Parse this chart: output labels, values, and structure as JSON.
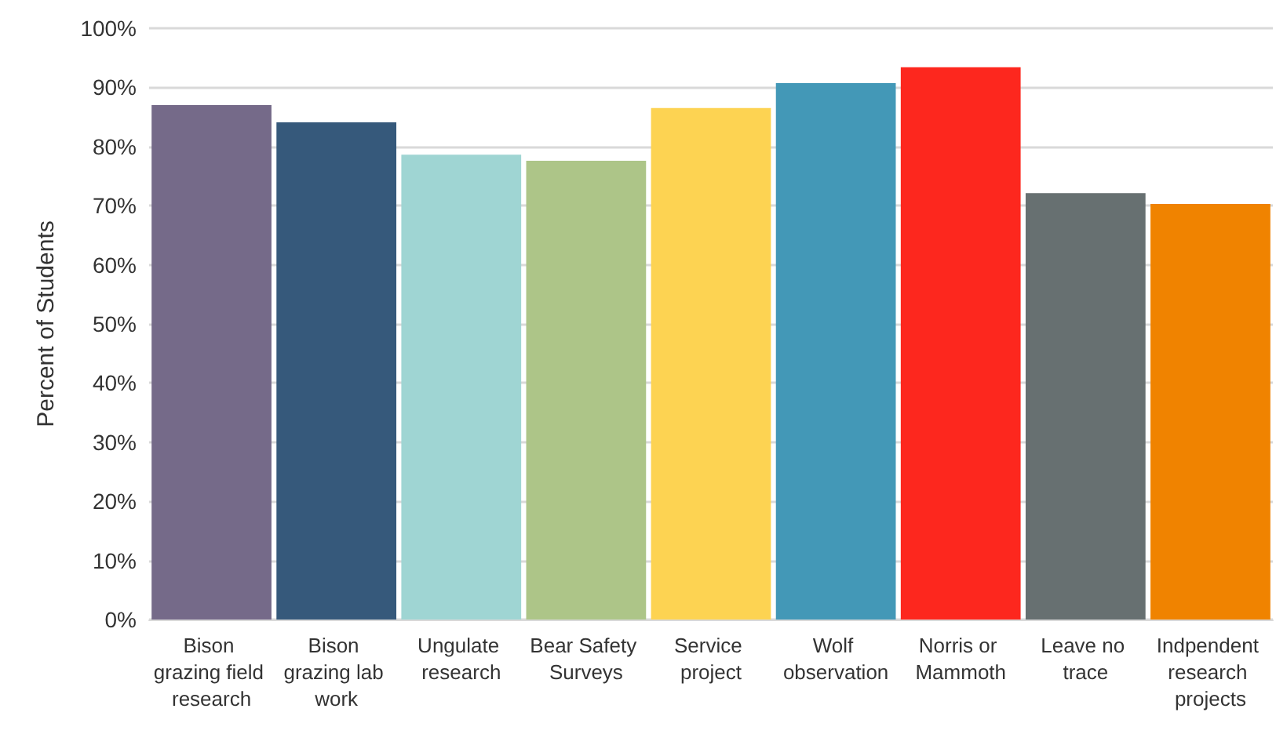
{
  "chart_data": {
    "type": "bar",
    "ylabel": "Percent of Students",
    "categories": [
      "Bison grazing field research",
      "Bison grazing lab work",
      "Ungulate research",
      "Bear Safety Surveys",
      "Service project",
      "Wolf observation",
      "Norris or Mammoth",
      "Leave no trace",
      "Indpendent research projects"
    ],
    "values": [
      87.0,
      84.1,
      78.6,
      77.6,
      86.5,
      90.7,
      93.4,
      72.1,
      70.3
    ],
    "colors": [
      "#756a89",
      "#36597b",
      "#9fd5d3",
      "#adc588",
      "#fdd352",
      "#4398b7",
      "#fd271e",
      "#677071",
      "#f08300"
    ],
    "ylim": [
      0,
      100
    ],
    "yticks": [
      {
        "value": 0,
        "label": "0%"
      },
      {
        "value": 10,
        "label": "10%"
      },
      {
        "value": 20,
        "label": "20%"
      },
      {
        "value": 30,
        "label": "30%"
      },
      {
        "value": 40,
        "label": "40%"
      },
      {
        "value": 50,
        "label": "50%"
      },
      {
        "value": 60,
        "label": "60%"
      },
      {
        "value": 70,
        "label": "70%"
      },
      {
        "value": 80,
        "label": "80%"
      },
      {
        "value": 90,
        "label": "90%"
      },
      {
        "value": 100,
        "label": "100%"
      }
    ],
    "grid": "y"
  }
}
